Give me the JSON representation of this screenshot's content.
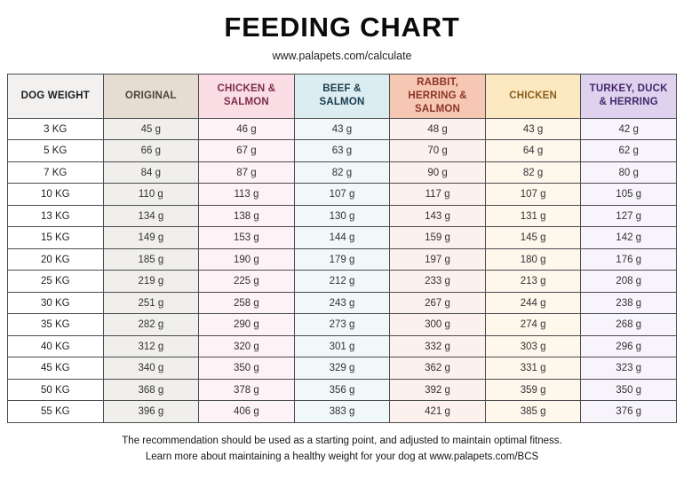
{
  "page": {
    "title": "FEEDING CHART",
    "subtitle": "www.palapets.com/calculate",
    "footer_line1": "The recommendation should be used as a starting point, and adjusted to maintain optimal fitness.",
    "footer_line2": "Learn more about maintaining a healthy weight for your dog at www.palapets.com/BCS"
  },
  "chart_data": {
    "type": "table",
    "title": "FEEDING CHART",
    "unit": "grams per day",
    "columns": [
      {
        "label": "DOG WEIGHT",
        "header_bg": "#f2f1f0",
        "header_fg": "#1c1c1c",
        "cell_bg": "#ffffff"
      },
      {
        "label": "ORIGINAL",
        "header_bg": "#e5ddd1",
        "header_fg": "#4a443c",
        "cell_bg": "#f0efec"
      },
      {
        "label": "CHICKEN & SALMON",
        "header_bg": "#fadde5",
        "header_fg": "#7d2c4a",
        "cell_bg": "#fdf2f5"
      },
      {
        "label": "BEEF & SALMON",
        "header_bg": "#dcedf1",
        "header_fg": "#173a50",
        "cell_bg": "#f1f8f9"
      },
      {
        "label": "RABBIT, HERRING & SALMON",
        "header_bg": "#f6c7b2",
        "header_fg": "#8c3526",
        "cell_bg": "#fdf1ed"
      },
      {
        "label": "CHICKEN",
        "header_bg": "#fce9c2",
        "header_fg": "#8a5c1c",
        "cell_bg": "#fdf7ec"
      },
      {
        "label": "TURKEY, DUCK & HERRING",
        "header_bg": "#ded2ee",
        "header_fg": "#44276b",
        "cell_bg": "#f8f4fb"
      }
    ],
    "rows": [
      {
        "weight": "3 KG",
        "values": [
          "45 g",
          "46 g",
          "43 g",
          "48 g",
          "43 g",
          "42 g"
        ]
      },
      {
        "weight": "5 KG",
        "values": [
          "66 g",
          "67 g",
          "63 g",
          "70 g",
          "64 g",
          "62 g"
        ]
      },
      {
        "weight": "7 KG",
        "values": [
          "84 g",
          "87 g",
          "82 g",
          "90 g",
          "82 g",
          "80 g"
        ]
      },
      {
        "weight": "10 KG",
        "values": [
          "110 g",
          "113 g",
          "107 g",
          "117 g",
          "107 g",
          "105 g"
        ]
      },
      {
        "weight": "13 KG",
        "values": [
          "134 g",
          "138 g",
          "130 g",
          "143 g",
          "131 g",
          "127 g"
        ]
      },
      {
        "weight": "15 KG",
        "values": [
          "149 g",
          "153 g",
          "144 g",
          "159 g",
          "145 g",
          "142 g"
        ]
      },
      {
        "weight": "20 KG",
        "values": [
          "185 g",
          "190 g",
          "179 g",
          "197 g",
          "180 g",
          "176 g"
        ]
      },
      {
        "weight": "25 KG",
        "values": [
          "219 g",
          "225 g",
          "212 g",
          "233 g",
          "213 g",
          "208 g"
        ]
      },
      {
        "weight": "30 KG",
        "values": [
          "251 g",
          "258 g",
          "243 g",
          "267 g",
          "244 g",
          "238 g"
        ]
      },
      {
        "weight": "35 KG",
        "values": [
          "282 g",
          "290 g",
          "273 g",
          "300 g",
          "274 g",
          "268 g"
        ]
      },
      {
        "weight": "40 KG",
        "values": [
          "312 g",
          "320 g",
          "301 g",
          "332 g",
          "303 g",
          "296 g"
        ]
      },
      {
        "weight": "45 KG",
        "values": [
          "340 g",
          "350 g",
          "329 g",
          "362 g",
          "331 g",
          "323 g"
        ]
      },
      {
        "weight": "50 KG",
        "values": [
          "368 g",
          "378 g",
          "356 g",
          "392 g",
          "359 g",
          "350 g"
        ]
      },
      {
        "weight": "55 KG",
        "values": [
          "396 g",
          "406 g",
          "383 g",
          "421 g",
          "385 g",
          "376 g"
        ]
      }
    ]
  }
}
